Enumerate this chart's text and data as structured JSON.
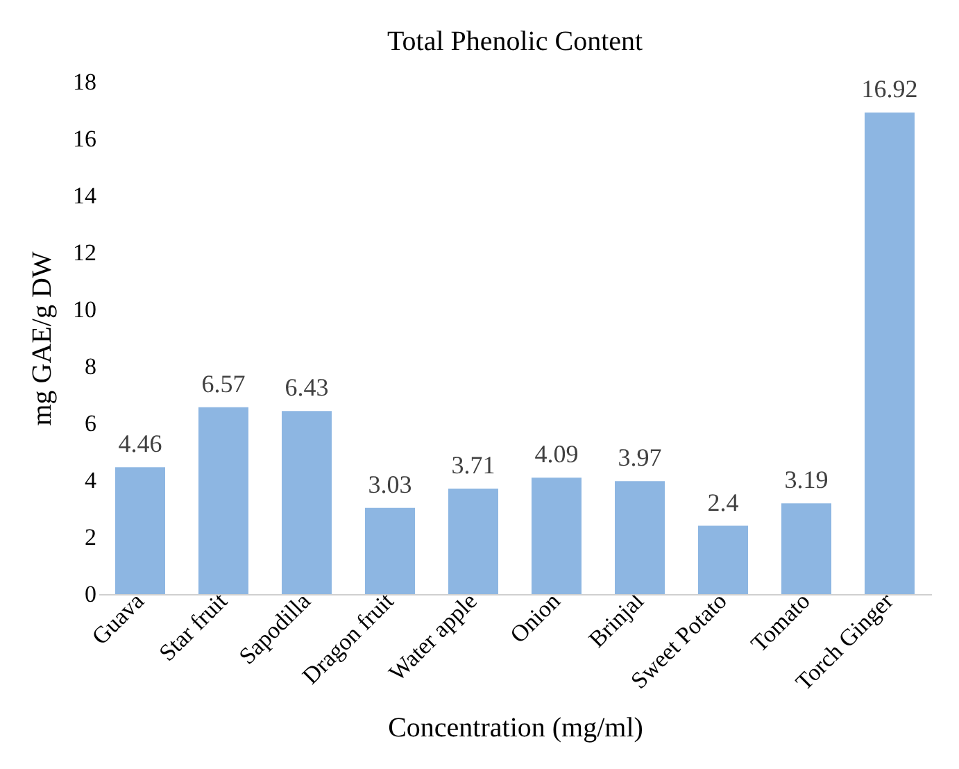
{
  "chart_data": {
    "type": "bar",
    "title": "Total Phenolic Content",
    "xlabel": "Concentration (mg/ml)",
    "ylabel": "mg GAE/g DW",
    "categories": [
      "Guava",
      "Star fruit",
      "Sapodilla",
      "Dragon fruit",
      "Water apple",
      "Onion",
      "Brinjal",
      "Sweet Potato",
      "Tomato",
      "Torch Ginger"
    ],
    "values": [
      4.46,
      6.57,
      6.43,
      3.03,
      3.71,
      4.09,
      3.97,
      2.4,
      3.19,
      16.92
    ],
    "color": "#8db6e2",
    "ylim": [
      0,
      18
    ],
    "yticks": [
      0,
      2,
      4,
      6,
      8,
      10,
      12,
      14,
      16,
      18
    ],
    "grid": false,
    "data_labels": true
  }
}
